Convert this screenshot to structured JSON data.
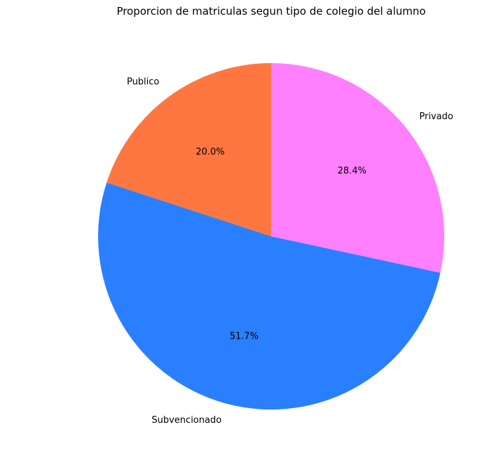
{
  "chart_data": {
    "type": "pie",
    "title": "Proporcion de matriculas segun tipo de colegio del alumno",
    "start_angle_deg": 90,
    "direction": "counterclockwise",
    "slices": [
      {
        "label": "Publico",
        "value": 20.0,
        "pct_label": "20.0%",
        "color": "#ff7740"
      },
      {
        "label": "Subvencionado",
        "value": 51.7,
        "pct_label": "51.7%",
        "color": "#2a7fff"
      },
      {
        "label": "Privado",
        "value": 28.4,
        "pct_label": "28.4%",
        "color": "#ff80ff"
      }
    ]
  }
}
